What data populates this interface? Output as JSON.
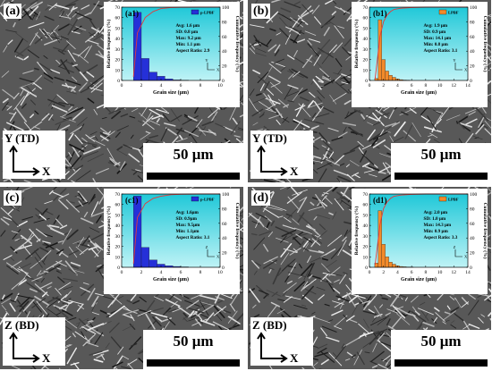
{
  "panels": [
    {
      "label": "(a)",
      "inset_label": "(a1)",
      "legend": "p-LPBF",
      "bar_color": "#2530d8",
      "bg_color": "#20c8d8",
      "axis_vertical": "Y (TD)",
      "axis_horizontal": "X",
      "scale_bar": "50 μm",
      "stats": [
        "Avg: 1.6 μm",
        "SD: 0.8 μm",
        "Max: 9.2 μm",
        "Min: 1.1 μm",
        "Aspect Ratio: 2.9"
      ],
      "mini_axis": {
        "v": "Y",
        "h": "X"
      }
    },
    {
      "label": "(b)",
      "inset_label": "(b1)",
      "legend": "LPBF",
      "bar_color": "#f28a2a",
      "bg_color": "#20c8d8",
      "axis_vertical": "Y (TD)",
      "axis_horizontal": "X",
      "scale_bar": "50 μm",
      "stats": [
        "Avg: 1.9 μm",
        "SD: 0.9 μm",
        "Max: 14.1 μm",
        "Min: 0.8 μm",
        "Aspect Ratio: 3.1"
      ],
      "mini_axis": {
        "v": "Y",
        "h": "X"
      }
    },
    {
      "label": "(c)",
      "inset_label": "(c1)",
      "legend": "p-LPBF",
      "bar_color": "#2530d8",
      "bg_color": "#20c8d8",
      "axis_vertical": "Z (BD)",
      "axis_horizontal": "X",
      "scale_bar": "50 μm",
      "stats": [
        "Avg: 1.6μm",
        "SD: 0.9μm",
        "Max: 9.5μm",
        "Min: 1.1μm",
        "Aspect Ratio: 3.1"
      ],
      "mini_axis": {
        "v": "Z",
        "h": "X"
      }
    },
    {
      "label": "(d)",
      "inset_label": "(d1)",
      "legend": "LPBF",
      "bar_color": "#f28a2a",
      "bg_color": "#20c8d8",
      "axis_vertical": "Z (BD)",
      "axis_horizontal": "X",
      "scale_bar": "50 μm",
      "stats": [
        "Avg: 2.0 μm",
        "SD: 1.0 μm",
        "Max: 14.3 μm",
        "Min: 0.9 μm",
        "Aspect Ratio: 3.3"
      ],
      "mini_axis": {
        "v": "Z",
        "h": "X"
      }
    }
  ],
  "chart_data": [
    {
      "type": "bar",
      "title": "(a1)",
      "series_name": "p-LPBF",
      "xlabel": "Grain size (μm)",
      "ylabel": "Relative frequency (%)",
      "y2label": "Cumulative frequency (%)",
      "xlim": [
        0,
        10
      ],
      "xticks": [
        0,
        2,
        4,
        6,
        8,
        10
      ],
      "ylim": [
        0,
        70
      ],
      "yticks": [
        0,
        10,
        20,
        30,
        40,
        50,
        60,
        70
      ],
      "y2lim": [
        0,
        100
      ],
      "y2ticks": [
        0,
        20,
        40,
        60,
        80,
        100
      ],
      "bin_width": 0.8,
      "x": [
        1.6,
        2.4,
        3.2,
        4.0,
        4.8,
        5.6,
        6.4
      ],
      "values": [
        65,
        21,
        8,
        4,
        1.5,
        0.5,
        0.3
      ],
      "cumulative": {
        "x": [
          1.2,
          1.6,
          2.4,
          3.2,
          4.0,
          5.0,
          6.0,
          8.0,
          10.0
        ],
        "y": [
          5,
          65,
          86,
          94,
          98,
          99.5,
          99.8,
          100,
          100
        ]
      }
    },
    {
      "type": "bar",
      "title": "(b1)",
      "series_name": "LPBF",
      "xlabel": "Grain size (μm)",
      "ylabel": "Relative frequency (%)",
      "y2label": "Cumulative frequency (%)",
      "xlim": [
        0,
        14
      ],
      "xticks": [
        0,
        2,
        4,
        6,
        8,
        10,
        12,
        14
      ],
      "ylim": [
        0,
        70
      ],
      "yticks": [
        0,
        10,
        20,
        30,
        40,
        50,
        60,
        70
      ],
      "y2lim": [
        0,
        100
      ],
      "y2ticks": [
        0,
        20,
        40,
        60,
        80,
        100
      ],
      "bin_width": 0.5,
      "x": [
        1.0,
        1.5,
        2.0,
        2.5,
        3.0,
        3.5,
        4.0,
        4.5,
        5.0,
        5.5
      ],
      "values": [
        2,
        58,
        20,
        9,
        5,
        3,
        1.5,
        0.8,
        0.4,
        0.3
      ],
      "cumulative": {
        "x": [
          0.8,
          1.5,
          2.0,
          2.5,
          3.0,
          3.5,
          4.5,
          6.0,
          8.0,
          14.0
        ],
        "y": [
          2,
          60,
          80,
          89,
          94,
          97,
          98.5,
          99.5,
          100,
          100
        ]
      }
    },
    {
      "type": "bar",
      "title": "(c1)",
      "series_name": "p-LPBF",
      "xlabel": "Grain size (μm)",
      "ylabel": "Relative frequency (%)",
      "y2label": "Cumulative frequency (%)",
      "xlim": [
        0,
        10
      ],
      "xticks": [
        0,
        2,
        4,
        6,
        8,
        10
      ],
      "ylim": [
        0,
        70
      ],
      "yticks": [
        0,
        10,
        20,
        30,
        40,
        50,
        60,
        70
      ],
      "y2lim": [
        0,
        100
      ],
      "y2ticks": [
        0,
        20,
        40,
        60,
        80,
        100
      ],
      "bin_width": 0.8,
      "x": [
        1.6,
        2.4,
        3.2,
        4.0,
        4.8,
        5.6,
        6.4
      ],
      "values": [
        68,
        19,
        7,
        3,
        1.5,
        0.8,
        0.4
      ],
      "cumulative": {
        "x": [
          1.2,
          1.6,
          2.4,
          3.2,
          4.0,
          5.0,
          6.0,
          8.0,
          10.0
        ],
        "y": [
          5,
          68,
          87,
          94,
          97,
          99,
          99.6,
          100,
          100
        ]
      }
    },
    {
      "type": "bar",
      "title": "(d1)",
      "series_name": "LPBF",
      "xlabel": "Grain size (μm)",
      "ylabel": "Relative frequency (%)",
      "y2label": "Cumulative frequency (%)",
      "xlim": [
        0,
        14
      ],
      "xticks": [
        0,
        2,
        4,
        6,
        8,
        10,
        12,
        14
      ],
      "ylim": [
        0,
        70
      ],
      "yticks": [
        0,
        10,
        20,
        30,
        40,
        50,
        60,
        70
      ],
      "y2lim": [
        0,
        100
      ],
      "y2ticks": [
        0,
        20,
        40,
        60,
        80,
        100
      ],
      "bin_width": 0.5,
      "x": [
        1.0,
        1.5,
        2.0,
        2.5,
        3.0,
        3.5,
        4.0,
        4.5,
        5.0,
        5.5,
        6.0
      ],
      "values": [
        4,
        54,
        22,
        10,
        5,
        3,
        1.5,
        0.8,
        0.5,
        0.3,
        0.2
      ],
      "cumulative": {
        "x": [
          0.8,
          1.5,
          2.0,
          2.5,
          3.0,
          3.5,
          4.5,
          6.0,
          8.0,
          14.0
        ],
        "y": [
          3,
          58,
          80,
          89,
          94,
          97,
          98.5,
          99.5,
          100,
          100
        ]
      }
    }
  ]
}
